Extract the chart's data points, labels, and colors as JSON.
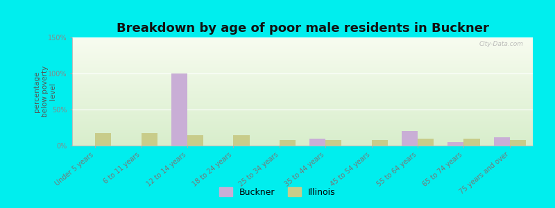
{
  "title": "Breakdown by age of poor male residents in Buckner",
  "ylabel": "percentage\nbelow poverty\nlevel",
  "categories": [
    "Under 5 years",
    "6 to 11 years",
    "12 to 14 years",
    "18 to 24 years",
    "25 to 34 years",
    "35 to 44 years",
    "45 to 54 years",
    "55 to 64 years",
    "65 to 74 years",
    "75 years and over"
  ],
  "buckner_values": [
    0,
    0,
    100,
    0,
    0,
    10,
    0,
    20,
    5,
    12
  ],
  "illinois_values": [
    17,
    17,
    14,
    14,
    8,
    8,
    8,
    10,
    10,
    8
  ],
  "buckner_color": "#c9aed6",
  "illinois_color": "#c8cc8a",
  "background_color": "#00eeee",
  "ylim": [
    0,
    150
  ],
  "yticks": [
    0,
    50,
    100,
    150
  ],
  "ytick_labels": [
    "0%",
    "50%",
    "100%",
    "150%"
  ],
  "bar_width": 0.35,
  "title_fontsize": 13,
  "ylabel_fontsize": 7.5,
  "tick_fontsize": 7,
  "xtick_color": "#777777",
  "ytick_color": "#888888",
  "ylabel_color": "#555555",
  "legend_buckner": "Buckner",
  "legend_illinois": "Illinois",
  "watermark": "City-Data.com",
  "plot_bg_grad_top": "#f8fcf0",
  "plot_bg_grad_bottom": "#d8eecc"
}
